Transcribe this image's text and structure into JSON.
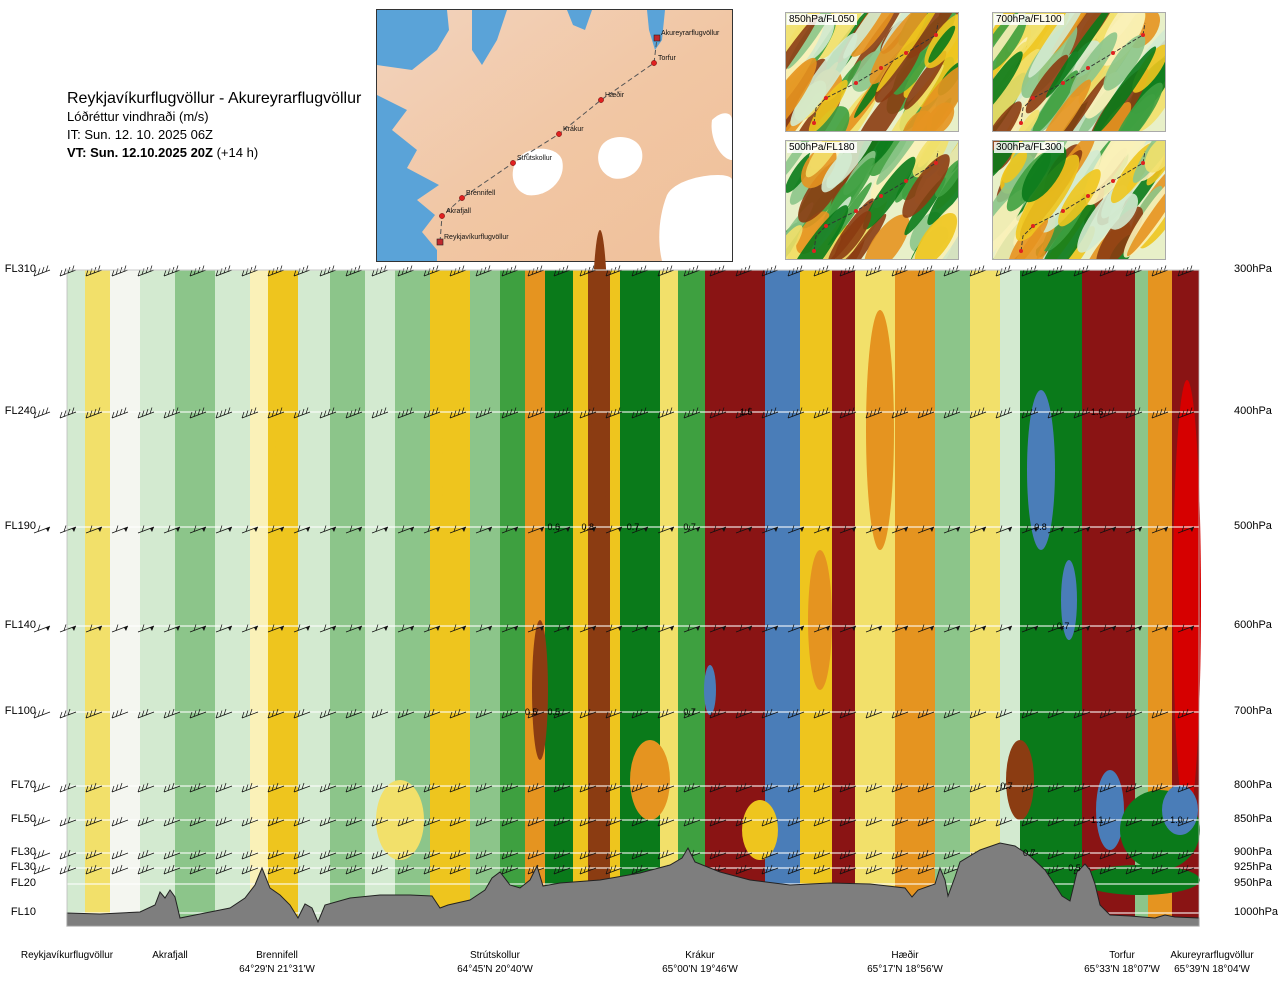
{
  "header": {
    "route": "Reykjavíkurflugvöllur - Akureyrarflugvöllur",
    "subtitle": "Lóðréttur vindhraði (m/s)",
    "issue_time": "IT: Sun. 12. 10. 2025 06Z",
    "valid_time": "VT: Sun. 12.10.2025 20Z",
    "lead": "(+14 h)"
  },
  "overview_map": {
    "places": [
      {
        "name": "Akureyrarflugvöllur",
        "marker": "square"
      },
      {
        "name": "Torfur",
        "marker": "dot"
      },
      {
        "name": "Hæðir",
        "marker": "dot"
      },
      {
        "name": "Krákur",
        "marker": "dot"
      },
      {
        "name": "Strútskollur",
        "marker": "dot"
      },
      {
        "name": "Brennifell",
        "marker": "dot"
      },
      {
        "name": "Akrafjall",
        "marker": "dot"
      },
      {
        "name": "Reykjavíkurflugvöllur",
        "marker": "square"
      }
    ]
  },
  "mini_maps": [
    {
      "label": "850hPa/FL050"
    },
    {
      "label": "700hPa/FL100"
    },
    {
      "label": "500hPa/FL180"
    },
    {
      "label": "300hPa/FL300"
    }
  ],
  "chart_data": {
    "type": "heatmap",
    "title": "Lóðréttur vindhraði (m/s)",
    "levels": [
      {
        "fl": "FL310",
        "hpa": "300hPa"
      },
      {
        "fl": "FL240",
        "hpa": "400hPa"
      },
      {
        "fl": "FL190",
        "hpa": "500hPa"
      },
      {
        "fl": "FL140",
        "hpa": "600hPa"
      },
      {
        "fl": "FL100",
        "hpa": "700hPa"
      },
      {
        "fl": "FL70",
        "hpa": "800hPa"
      },
      {
        "fl": "FL50",
        "hpa": "850hPa"
      },
      {
        "fl": "FL30",
        "hpa": "900hPa"
      },
      {
        "fl": "FL30",
        "hpa": "925hPa"
      },
      {
        "fl": "FL20",
        "hpa": "950hPa"
      },
      {
        "fl": "FL10",
        "hpa": "1000hPa"
      }
    ],
    "locations": [
      {
        "name": "Reykjavíkurflugvöllur",
        "coord": ""
      },
      {
        "name": "Akrafjall",
        "coord": ""
      },
      {
        "name": "Brennifell",
        "coord": "64°29'N 21°31'W"
      },
      {
        "name": "Strútskollur",
        "coord": "64°45'N 20°40'W"
      },
      {
        "name": "Krákur",
        "coord": "65°00'N 19°46'W"
      },
      {
        "name": "Hæðir",
        "coord": "65°17'N 18°56'W"
      },
      {
        "name": "Torfur",
        "coord": "65°33'N 18°07'W"
      },
      {
        "name": "Akureyrarflugvöllur",
        "coord": "65°39'N 18°04'W"
      }
    ],
    "contour_labels": [
      {
        "text": "1.5",
        "level": "400hPa",
        "along_route": 0.6
      },
      {
        "text": "1.6",
        "level": "400hPa",
        "along_route": 0.91
      },
      {
        "text": "0.6",
        "level": "500hPa",
        "along_route": 0.43
      },
      {
        "text": "0.8",
        "level": "500hPa",
        "along_route": 0.46
      },
      {
        "text": "0.7",
        "level": "500hPa",
        "along_route": 0.5
      },
      {
        "text": "0.7",
        "level": "500hPa",
        "along_route": 0.55
      },
      {
        "text": "0.8",
        "level": "500hPa",
        "along_route": 0.86
      },
      {
        "text": "0.7",
        "level": "600hPa",
        "along_route": 0.88
      },
      {
        "text": "0.5",
        "level": "700hPa",
        "along_route": 0.41
      },
      {
        "text": "0.5",
        "level": "700hPa",
        "along_route": 0.43
      },
      {
        "text": "0.7",
        "level": "700hPa",
        "along_route": 0.55
      },
      {
        "text": "0.7",
        "level": "800hPa",
        "along_route": 0.83
      },
      {
        "text": "1.1",
        "level": "850hPa",
        "along_route": 0.91
      },
      {
        "text": "1.0",
        "level": "850hPa",
        "along_route": 0.98
      },
      {
        "text": "0.7",
        "level": "900hPa",
        "along_route": 0.85
      },
      {
        "text": "0.5",
        "level": "925hPa",
        "along_route": 0.89
      }
    ],
    "color_scale": {
      "strong_down": "#4a7db8",
      "down_3": "#0a7a1a",
      "down_2": "#3ea040",
      "down_1": "#8cc58a",
      "down_0": "#d3ead0",
      "neutral": "#f4f6f0",
      "up_0": "#faf1b8",
      "up_1": "#f2e06a",
      "up_2": "#eec51e",
      "up_3": "#e59420",
      "up_4": "#8b3c12",
      "up_5": "#8a1414",
      "strong_up": "#d60000",
      "terrain": "#7e7e7e"
    }
  }
}
